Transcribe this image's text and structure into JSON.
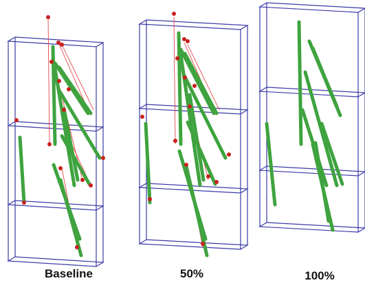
{
  "panels": [
    {
      "label": "Baseline"
    },
    {
      "label": "50%"
    },
    {
      "label": "100%"
    }
  ]
}
